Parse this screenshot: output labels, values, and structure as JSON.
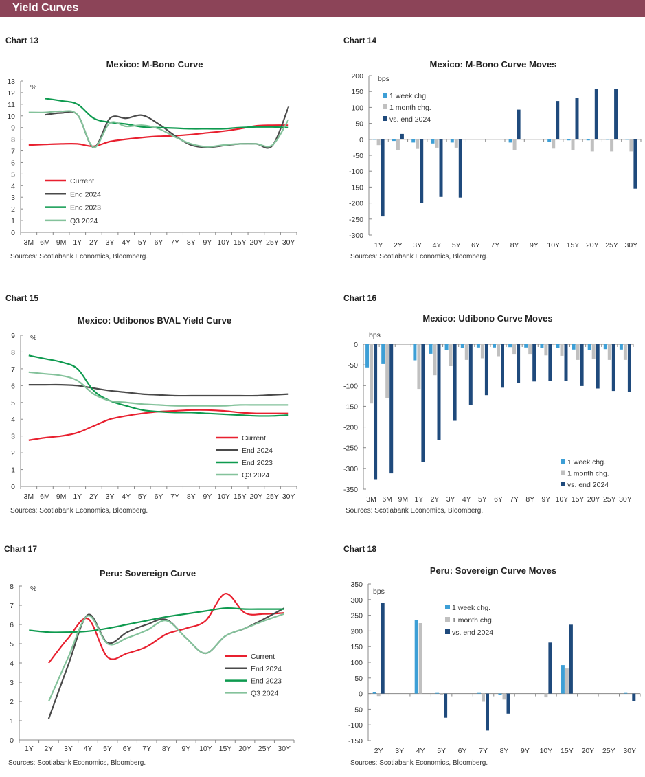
{
  "header": {
    "title": "Yield Curves"
  },
  "colors": {
    "header_bg": "#8c4458",
    "current": "#e8202f",
    "end2024": "#4a4a4a",
    "end2023": "#0e9a4f",
    "q32024": "#84c29b",
    "week": "#3d9fd6",
    "month": "#c0c0c0",
    "vs_end": "#1f4a7c"
  },
  "chart_data": [
    {
      "label": "Chart 13",
      "type": "line",
      "title": "Mexico: M-Bono Curve",
      "unit": "%",
      "source": "Sources:  Scotiabank  Economics,  Bloomberg.",
      "ylim": [
        0,
        13
      ],
      "ystep": 1,
      "legend": "left",
      "grid": false,
      "categories": [
        "3M",
        "6M",
        "9M",
        "1Y",
        "2Y",
        "3Y",
        "4Y",
        "5Y",
        "6Y",
        "7Y",
        "8Y",
        "9Y",
        "10Y",
        "15Y",
        "20Y",
        "25Y",
        "30Y"
      ],
      "series": [
        {
          "name": "Current",
          "color": "#e8202f",
          "values": [
            7.5,
            7.55,
            7.6,
            7.6,
            7.4,
            7.8,
            8.0,
            8.15,
            8.25,
            8.3,
            8.4,
            8.55,
            8.7,
            8.9,
            9.15,
            9.2,
            9.2
          ]
        },
        {
          "name": "End 2024",
          "color": "#4a4a4a",
          "values": [
            null,
            10.1,
            10.25,
            10.1,
            7.3,
            9.8,
            9.8,
            10.05,
            9.3,
            8.3,
            7.5,
            7.3,
            7.45,
            7.6,
            7.6,
            7.45,
            10.8
          ]
        },
        {
          "name": "End 2023",
          "color": "#0e9a4f",
          "values": [
            null,
            11.5,
            11.3,
            11.0,
            9.8,
            9.45,
            9.3,
            9.05,
            9.0,
            8.95,
            8.9,
            8.9,
            8.9,
            9.0,
            9.05,
            9.05,
            9.0
          ]
        },
        {
          "name": "Q3 2024",
          "color": "#84c29b",
          "values": [
            10.3,
            10.3,
            10.4,
            10.1,
            7.3,
            9.4,
            9.1,
            9.2,
            8.9,
            8.2,
            7.6,
            7.35,
            7.5,
            7.6,
            7.6,
            7.5,
            9.7
          ]
        }
      ]
    },
    {
      "label": "Chart 14",
      "type": "bar",
      "title": "Mexico: M-Bono Curve Moves",
      "unit": "bps",
      "source": "Sources:  Scotiabank  Economics,  Bloomberg.",
      "ylim": [
        -300,
        200
      ],
      "ystep": 50,
      "legend": "top-left",
      "grid": false,
      "categories": [
        "1Y",
        "2Y",
        "3Y",
        "4Y",
        "5Y",
        "6Y",
        "7Y",
        "8Y",
        "9Y",
        "10Y",
        "15Y",
        "20Y",
        "25Y",
        "30Y"
      ],
      "series": [
        {
          "name": "1 week chg.",
          "color": "#3d9fd6",
          "values": [
            -1,
            -5,
            -10,
            -13,
            -10,
            0,
            0,
            -10,
            0,
            -8,
            -3,
            -3,
            -1,
            -1
          ]
        },
        {
          "name": "1 month chg.",
          "color": "#c0c0c0",
          "values": [
            -18,
            -33,
            -30,
            -26,
            -26,
            0,
            0,
            -35,
            0,
            -29,
            -35,
            -38,
            -38,
            -38
          ]
        },
        {
          "name": "vs. end 2024",
          "color": "#1f4a7c",
          "values": [
            -242,
            17,
            -200,
            -181,
            -183,
            0,
            0,
            93,
            0,
            120,
            130,
            157,
            159,
            -155
          ]
        }
      ]
    },
    {
      "label": "Chart 15",
      "type": "line",
      "title": "Mexico: Udibonos BVAL Yield Curve",
      "unit": "%",
      "source": "Sources:  Scotiabank  Economics,  Bloomberg.",
      "ylim": [
        0,
        9
      ],
      "ystep": 1,
      "legend": "bottom-right",
      "grid": false,
      "categories": [
        "3M",
        "6M",
        "9M",
        "1Y",
        "2Y",
        "3Y",
        "4Y",
        "5Y",
        "6Y",
        "7Y",
        "8Y",
        "9Y",
        "10Y",
        "15Y",
        "20Y",
        "25Y",
        "30Y"
      ],
      "series": [
        {
          "name": "Current",
          "color": "#e8202f",
          "values": [
            2.75,
            2.9,
            3.0,
            3.2,
            3.6,
            4.0,
            4.2,
            4.35,
            4.45,
            4.5,
            4.55,
            4.55,
            4.5,
            4.4,
            4.35,
            4.35,
            4.35
          ]
        },
        {
          "name": "End 2024",
          "color": "#4a4a4a",
          "values": [
            6.05,
            6.05,
            6.05,
            6.0,
            5.85,
            5.7,
            5.6,
            5.5,
            5.45,
            5.4,
            5.4,
            5.4,
            5.4,
            5.4,
            5.4,
            5.45,
            5.5
          ]
        },
        {
          "name": "End 2023",
          "color": "#0e9a4f",
          "values": [
            7.8,
            7.6,
            7.4,
            7.0,
            5.7,
            5.1,
            4.8,
            4.55,
            4.45,
            4.4,
            4.4,
            4.35,
            4.3,
            4.25,
            4.2,
            4.2,
            4.25
          ]
        },
        {
          "name": "Q3 2024",
          "color": "#84c29b",
          "values": [
            6.8,
            6.7,
            6.6,
            6.3,
            5.5,
            5.1,
            5.0,
            4.9,
            4.85,
            4.8,
            4.8,
            4.8,
            4.8,
            4.85,
            4.85,
            4.85,
            4.85
          ]
        }
      ]
    },
    {
      "label": "Chart 16",
      "type": "bar",
      "title": "Mexico: Udibono Curve Moves",
      "unit": "bps",
      "source": "Sources:  Scotiabank  Economics,  Bloomberg.",
      "ylim": [
        -350,
        0
      ],
      "ystep": 50,
      "legend": "bottom-right",
      "grid": false,
      "categories": [
        "3M",
        "6M",
        "9M",
        "1Y",
        "2Y",
        "3Y",
        "4Y",
        "5Y",
        "6Y",
        "7Y",
        "8Y",
        "9Y",
        "10Y",
        "15Y",
        "20Y",
        "25Y",
        "30Y"
      ],
      "series": [
        {
          "name": "1 week chg.",
          "color": "#3d9fd6",
          "values": [
            -56,
            -48,
            0,
            -39,
            -23,
            -15,
            -10,
            -8,
            -8,
            -7,
            -8,
            -10,
            -10,
            -13,
            -14,
            -12,
            -13
          ]
        },
        {
          "name": "1 month chg.",
          "color": "#c0c0c0",
          "values": [
            -143,
            -130,
            0,
            -108,
            -75,
            -53,
            -38,
            -34,
            -29,
            -25,
            -25,
            -27,
            -28,
            -38,
            -36,
            -38,
            -38
          ]
        },
        {
          "name": "vs. end 2024",
          "color": "#1f4a7c",
          "values": [
            -326,
            -312,
            0,
            -284,
            -232,
            -185,
            -146,
            -123,
            -105,
            -94,
            -90,
            -88,
            -88,
            -101,
            -107,
            -113,
            -116
          ]
        }
      ]
    },
    {
      "label": "Chart 17",
      "type": "line",
      "title": "Peru: Sovereign Curve",
      "unit": "%",
      "source": "Sources:  Scotiabank  Economics,  Bloomberg.",
      "ylim": [
        0,
        8
      ],
      "ystep": 1,
      "legend": "right",
      "grid": false,
      "categories": [
        "1Y",
        "2Y",
        "3Y",
        "4Y",
        "5Y",
        "6Y",
        "7Y",
        "8Y",
        "9Y",
        "10Y",
        "15Y",
        "20Y",
        "25Y",
        "30Y"
      ],
      "series": [
        {
          "name": "Current",
          "color": "#e8202f",
          "values": [
            null,
            4.0,
            5.3,
            6.3,
            4.3,
            4.5,
            4.85,
            5.5,
            5.8,
            6.2,
            7.6,
            6.6,
            6.55,
            6.6
          ]
        },
        {
          "name": "End 2024",
          "color": "#4a4a4a",
          "values": [
            null,
            1.1,
            3.9,
            6.5,
            5.05,
            5.6,
            6.0,
            6.25,
            5.3,
            4.5,
            5.4,
            5.8,
            6.3,
            6.85
          ]
        },
        {
          "name": "End 2023",
          "color": "#0e9a4f",
          "values": [
            5.7,
            5.6,
            5.6,
            5.65,
            5.8,
            6.0,
            6.2,
            6.4,
            6.55,
            6.7,
            6.85,
            6.8,
            6.8,
            6.8
          ]
        },
        {
          "name": "Q3 2024",
          "color": "#84c29b",
          "values": [
            null,
            2.0,
            4.3,
            6.45,
            5.0,
            5.3,
            5.7,
            6.2,
            5.3,
            4.5,
            5.4,
            5.8,
            6.2,
            6.55
          ]
        }
      ]
    },
    {
      "label": "Chart 18",
      "type": "bar",
      "title": "Peru: Sovereign Curve Moves",
      "unit": "bps",
      "source": "Sources:  Scotiabank  Economics,  Bloomberg.",
      "ylim": [
        -150,
        350
      ],
      "ystep": 50,
      "legend": "top-center",
      "grid": false,
      "categories": [
        "2Y",
        "3Y",
        "4Y",
        "5Y",
        "6Y",
        "7Y",
        "8Y",
        "9Y",
        "10Y",
        "15Y",
        "20Y",
        "25Y",
        "30Y"
      ],
      "series": [
        {
          "name": "1 week chg.",
          "color": "#3d9fd6",
          "values": [
            5,
            0,
            236,
            2,
            0,
            2,
            -3,
            0,
            0,
            91,
            0,
            0,
            2
          ]
        },
        {
          "name": "1 month chg.",
          "color": "#c0c0c0",
          "values": [
            -8,
            0,
            225,
            -5,
            0,
            -26,
            -19,
            0,
            -12,
            80,
            0,
            0,
            0
          ]
        },
        {
          "name": "vs. end 2024",
          "color": "#1f4a7c",
          "values": [
            290,
            0,
            0,
            -77,
            0,
            -118,
            -64,
            0,
            163,
            220,
            0,
            0,
            -24
          ]
        }
      ]
    }
  ]
}
